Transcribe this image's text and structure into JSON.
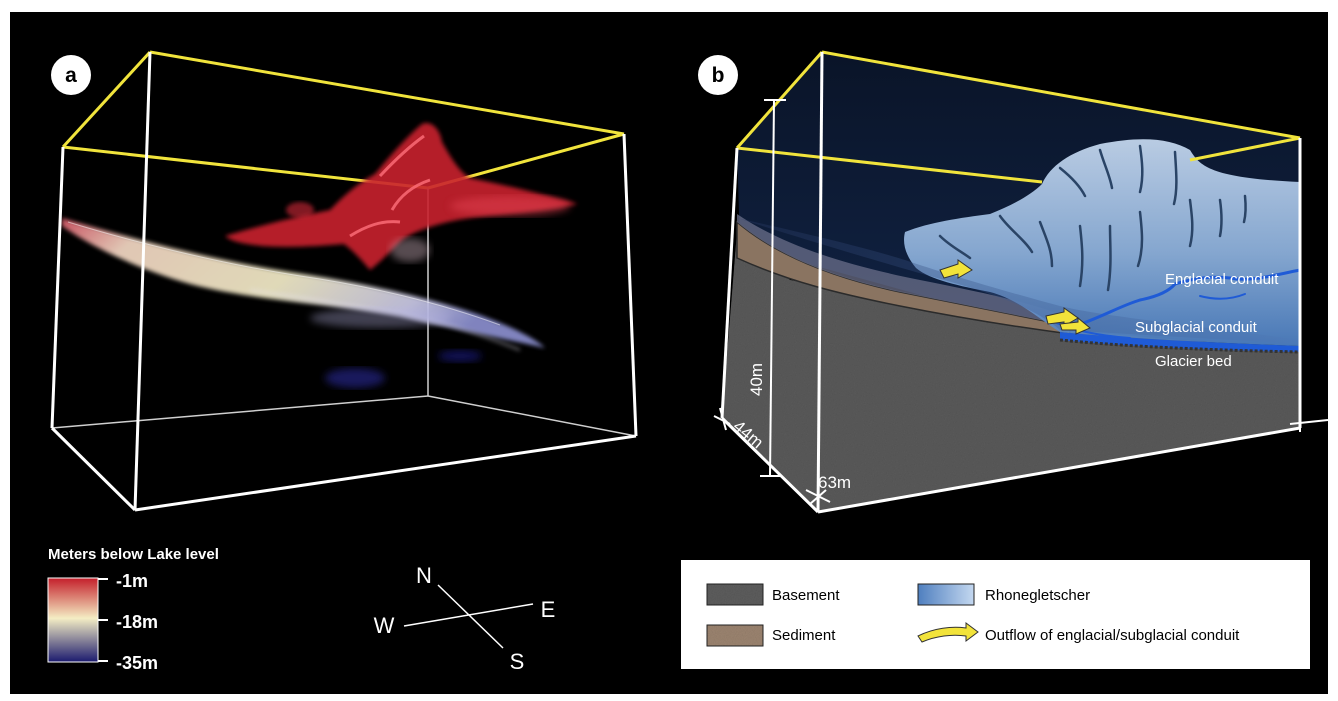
{
  "panels": {
    "a": {
      "badge": "a",
      "colorbar": {
        "title": "Meters below Lake level",
        "ticks": [
          "-1m",
          "-18m",
          "-35m"
        ],
        "colors": [
          "#c41e2a",
          "#f4edc4",
          "#1b1a6e"
        ]
      },
      "compass": {
        "north": "N",
        "east": "E",
        "south": "S",
        "west": "W"
      }
    },
    "b": {
      "badge": "b",
      "annotations": {
        "englacial": "Englacial conduit",
        "subglacial": "Subglacial conduit",
        "bed": "Glacier bed"
      },
      "dimensions": {
        "height": "40m",
        "depth": "44m",
        "width": "63m"
      }
    }
  },
  "legend": {
    "items": [
      {
        "label": "Basement",
        "color": "#5d5d5d"
      },
      {
        "label": "Rhonegletscher",
        "color": "#7fa3cf"
      },
      {
        "label": "Sediment",
        "color": "#9c8470"
      },
      {
        "label": "Outflow of englacial/subglacial conduit",
        "color": "#f2e33a"
      }
    ]
  },
  "colors": {
    "background": "#000000",
    "frame_top": "#f1e43c",
    "frame_edges": "#ffffff",
    "glacier": "#9fbde0",
    "crevasse": "#2a4466",
    "conduit": "#1f5bd6",
    "basement": "#5a5a5a",
    "sediment": "#8a7461",
    "sky": "#0d1a33"
  }
}
